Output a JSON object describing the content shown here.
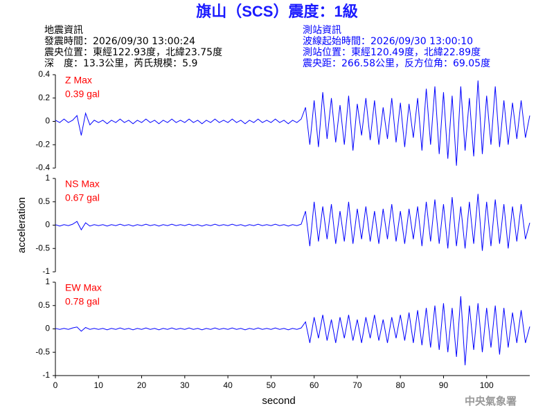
{
  "header": {
    "title": "旗山（SCS）震度：1級",
    "left": [
      "地震資訊",
      "發震時間：2026/09/30 13:00:24",
      "震央位置：東經122.93度，北緯23.75度",
      "深　度：13.3公里，芮氏規模：5.9"
    ],
    "right": [
      "測站資訊",
      "波線起始時間：2026/09/30 13:00:10",
      "測站位置：東經120.49度，北緯22.89度",
      "震央距：266.58公里，反方位角：69.05度"
    ]
  },
  "footer": "中央氣象署",
  "chart_data": [
    {
      "type": "line",
      "annotation": [
        "Z Max",
        "0.39 gal"
      ],
      "color": "#0000ff",
      "annotation_color": "#ff0000",
      "xlim": [
        0,
        110
      ],
      "ylim": [
        -0.4,
        0.4
      ],
      "yticks": [
        -0.4,
        -0.2,
        0,
        0.2,
        0.4
      ],
      "x": [
        0,
        1,
        2,
        3,
        4,
        5,
        6,
        7,
        8,
        9,
        10,
        11,
        12,
        13,
        14,
        15,
        16,
        17,
        18,
        19,
        20,
        21,
        22,
        23,
        24,
        25,
        26,
        27,
        28,
        29,
        30,
        31,
        32,
        33,
        34,
        35,
        36,
        37,
        38,
        39,
        40,
        41,
        42,
        43,
        44,
        45,
        46,
        47,
        48,
        49,
        50,
        51,
        52,
        53,
        54,
        55,
        56,
        57,
        58,
        59,
        60,
        61,
        62,
        63,
        64,
        65,
        66,
        67,
        68,
        69,
        70,
        71,
        72,
        73,
        74,
        75,
        76,
        77,
        78,
        79,
        80,
        81,
        82,
        83,
        84,
        85,
        86,
        87,
        88,
        89,
        90,
        91,
        92,
        93,
        94,
        95,
        96,
        97,
        98,
        99,
        100,
        101,
        102,
        103,
        104,
        105,
        106,
        107,
        108,
        109,
        110
      ],
      "values": [
        0.01,
        -0.01,
        0.02,
        -0.01,
        0.01,
        0.05,
        -0.12,
        0.07,
        -0.03,
        0.01,
        -0.01,
        0.01,
        -0.02,
        0.01,
        -0.01,
        0.02,
        -0.01,
        0.01,
        -0.02,
        0.01,
        -0.01,
        0.02,
        -0.01,
        0.01,
        -0.02,
        0.01,
        -0.01,
        0.02,
        -0.01,
        0.01,
        -0.01,
        0.02,
        -0.01,
        0.01,
        -0.02,
        0.01,
        -0.01,
        0.02,
        -0.01,
        0.01,
        -0.01,
        0.02,
        -0.01,
        0.01,
        -0.02,
        0.01,
        -0.01,
        0.02,
        -0.01,
        0.01,
        -0.01,
        0.02,
        -0.01,
        0.01,
        -0.02,
        0.01,
        -0.01,
        0.02,
        0.12,
        -0.2,
        0.18,
        -0.22,
        0.25,
        -0.15,
        0.2,
        -0.18,
        0.14,
        -0.2,
        0.22,
        -0.25,
        0.15,
        -0.12,
        0.2,
        -0.16,
        0.18,
        -0.2,
        0.12,
        -0.15,
        0.2,
        -0.18,
        0.16,
        -0.22,
        0.15,
        -0.14,
        0.2,
        -0.25,
        0.28,
        -0.2,
        0.3,
        -0.28,
        0.25,
        -0.32,
        0.22,
        -0.38,
        0.3,
        -0.25,
        0.2,
        -0.3,
        0.35,
        -0.28,
        0.22,
        -0.2,
        0.3,
        -0.22,
        0.18,
        -0.2,
        0.16,
        -0.15,
        0.18,
        -0.14,
        0.05
      ]
    },
    {
      "type": "line",
      "annotation": [
        "NS Max",
        "0.67 gal"
      ],
      "color": "#0000ff",
      "annotation_color": "#ff0000",
      "ylabel": "acceleration",
      "xlim": [
        0,
        110
      ],
      "ylim": [
        -1,
        1
      ],
      "yticks": [
        -1,
        -0.5,
        0,
        0.5,
        1
      ],
      "x": [
        0,
        1,
        2,
        3,
        4,
        5,
        6,
        7,
        8,
        9,
        10,
        11,
        12,
        13,
        14,
        15,
        16,
        17,
        18,
        19,
        20,
        21,
        22,
        23,
        24,
        25,
        26,
        27,
        28,
        29,
        30,
        31,
        32,
        33,
        34,
        35,
        36,
        37,
        38,
        39,
        40,
        41,
        42,
        43,
        44,
        45,
        46,
        47,
        48,
        49,
        50,
        51,
        52,
        53,
        54,
        55,
        56,
        57,
        58,
        59,
        60,
        61,
        62,
        63,
        64,
        65,
        66,
        67,
        68,
        69,
        70,
        71,
        72,
        73,
        74,
        75,
        76,
        77,
        78,
        79,
        80,
        81,
        82,
        83,
        84,
        85,
        86,
        87,
        88,
        89,
        90,
        91,
        92,
        93,
        94,
        95,
        96,
        97,
        98,
        99,
        100,
        101,
        102,
        103,
        104,
        105,
        106,
        107,
        108,
        109,
        110
      ],
      "values": [
        0.01,
        -0.02,
        0.01,
        -0.01,
        0.02,
        0.08,
        -0.1,
        0.05,
        -0.02,
        0.01,
        -0.01,
        0.01,
        -0.02,
        0.01,
        -0.01,
        0.02,
        -0.01,
        0.01,
        -0.02,
        0.01,
        -0.01,
        0.02,
        -0.01,
        0.01,
        -0.02,
        0.01,
        -0.01,
        0.02,
        -0.01,
        0.01,
        -0.01,
        0.02,
        -0.01,
        0.01,
        -0.02,
        0.01,
        -0.01,
        0.02,
        -0.01,
        0.01,
        -0.01,
        0.02,
        -0.01,
        0.01,
        -0.02,
        0.01,
        -0.01,
        0.02,
        -0.01,
        0.01,
        -0.01,
        0.02,
        -0.01,
        0.01,
        -0.02,
        0.01,
        -0.01,
        0.02,
        0.3,
        -0.45,
        0.5,
        -0.35,
        0.4,
        -0.3,
        0.45,
        -0.4,
        0.3,
        -0.35,
        0.5,
        -0.4,
        0.35,
        -0.3,
        0.4,
        -0.35,
        0.3,
        -0.4,
        0.35,
        -0.3,
        0.45,
        -0.35,
        0.3,
        -0.4,
        0.35,
        -0.3,
        0.4,
        -0.45,
        0.5,
        -0.35,
        0.55,
        -0.4,
        0.45,
        -0.5,
        0.6,
        -0.45,
        0.4,
        -0.5,
        0.5,
        -0.4,
        0.67,
        -0.55,
        0.5,
        -0.45,
        0.55,
        -0.4,
        0.45,
        -0.5,
        0.4,
        -0.35,
        0.45,
        -0.3,
        0.05
      ]
    },
    {
      "type": "line",
      "annotation": [
        "EW Max",
        "0.78 gal"
      ],
      "color": "#0000ff",
      "annotation_color": "#ff0000",
      "xlabel": "second",
      "xlim": [
        0,
        110
      ],
      "xticks": [
        0,
        10,
        20,
        30,
        40,
        50,
        60,
        70,
        80,
        90,
        100
      ],
      "ylim": [
        -1,
        1
      ],
      "yticks": [
        -1,
        -0.5,
        0,
        0.5,
        1
      ],
      "x": [
        0,
        1,
        2,
        3,
        4,
        5,
        6,
        7,
        8,
        9,
        10,
        11,
        12,
        13,
        14,
        15,
        16,
        17,
        18,
        19,
        20,
        21,
        22,
        23,
        24,
        25,
        26,
        27,
        28,
        29,
        30,
        31,
        32,
        33,
        34,
        35,
        36,
        37,
        38,
        39,
        40,
        41,
        42,
        43,
        44,
        45,
        46,
        47,
        48,
        49,
        50,
        51,
        52,
        53,
        54,
        55,
        56,
        57,
        58,
        59,
        60,
        61,
        62,
        63,
        64,
        65,
        66,
        67,
        68,
        69,
        70,
        71,
        72,
        73,
        74,
        75,
        76,
        77,
        78,
        79,
        80,
        81,
        82,
        83,
        84,
        85,
        86,
        87,
        88,
        89,
        90,
        91,
        92,
        93,
        94,
        95,
        96,
        97,
        98,
        99,
        100,
        101,
        102,
        103,
        104,
        105,
        106,
        107,
        108,
        109,
        110
      ],
      "values": [
        0.01,
        -0.01,
        0.01,
        -0.01,
        0.02,
        0.04,
        -0.05,
        0.03,
        -0.01,
        0.01,
        -0.01,
        0.01,
        -0.02,
        0.01,
        -0.01,
        0.02,
        -0.01,
        0.01,
        -0.02,
        0.01,
        -0.01,
        0.02,
        -0.01,
        0.01,
        -0.02,
        0.01,
        -0.01,
        0.02,
        -0.01,
        0.01,
        -0.01,
        0.02,
        -0.01,
        0.01,
        -0.02,
        0.01,
        -0.01,
        0.02,
        -0.01,
        0.01,
        -0.01,
        0.02,
        -0.01,
        0.01,
        -0.02,
        0.01,
        -0.01,
        0.02,
        -0.01,
        0.01,
        -0.01,
        0.02,
        -0.01,
        0.01,
        -0.02,
        0.01,
        -0.01,
        0.02,
        0.15,
        -0.3,
        0.25,
        -0.2,
        0.3,
        -0.25,
        0.2,
        -0.3,
        0.25,
        -0.2,
        0.3,
        -0.25,
        0.2,
        -0.3,
        0.25,
        -0.2,
        0.3,
        -0.25,
        0.2,
        -0.3,
        0.25,
        -0.2,
        0.3,
        -0.25,
        0.35,
        -0.3,
        0.4,
        -0.35,
        0.45,
        -0.4,
        0.5,
        -0.45,
        0.55,
        -0.5,
        0.45,
        -0.6,
        0.7,
        -0.78,
        0.5,
        -0.45,
        0.55,
        -0.5,
        0.45,
        -0.4,
        0.5,
        -0.55,
        0.45,
        -0.4,
        0.35,
        -0.3,
        0.4,
        -0.3,
        0.05
      ]
    }
  ]
}
